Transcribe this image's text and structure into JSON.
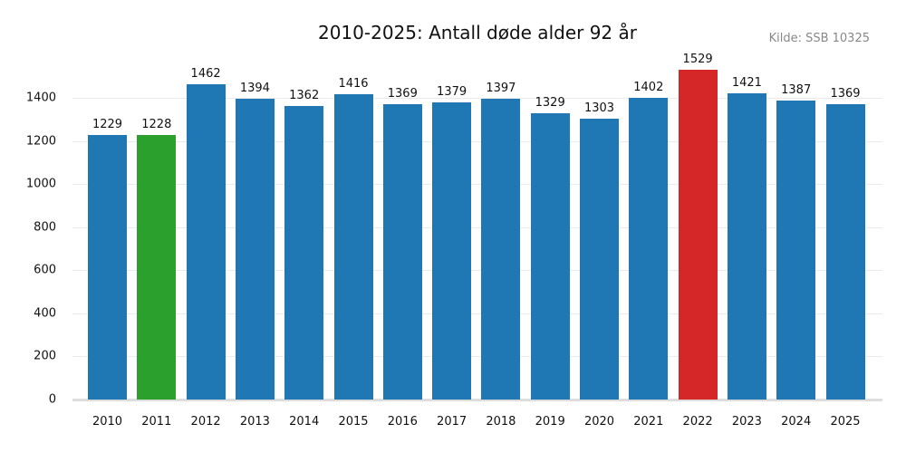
{
  "chart_data": {
    "type": "bar",
    "title": "2010-2025: Antall døde alder 92 år",
    "source": "Kilde: SSB 10325",
    "xlabel": "",
    "ylabel": "",
    "ylim": [
      0,
      1600
    ],
    "yticks": [
      0,
      200,
      400,
      600,
      800,
      1000,
      1200,
      1400
    ],
    "grid": true,
    "categories": [
      "2010",
      "2011",
      "2012",
      "2013",
      "2014",
      "2015",
      "2016",
      "2017",
      "2018",
      "2019",
      "2020",
      "2021",
      "2022",
      "2023",
      "2024",
      "2025"
    ],
    "values": [
      1229,
      1228,
      1462,
      1394,
      1362,
      1416,
      1369,
      1379,
      1397,
      1329,
      1303,
      1402,
      1529,
      1421,
      1387,
      1369
    ],
    "colors": {
      "default": "#1f77b4",
      "min": "#2ca02c",
      "max": "#d62728"
    },
    "highlights": {
      "min_year": "2011",
      "max_year": "2022"
    }
  }
}
